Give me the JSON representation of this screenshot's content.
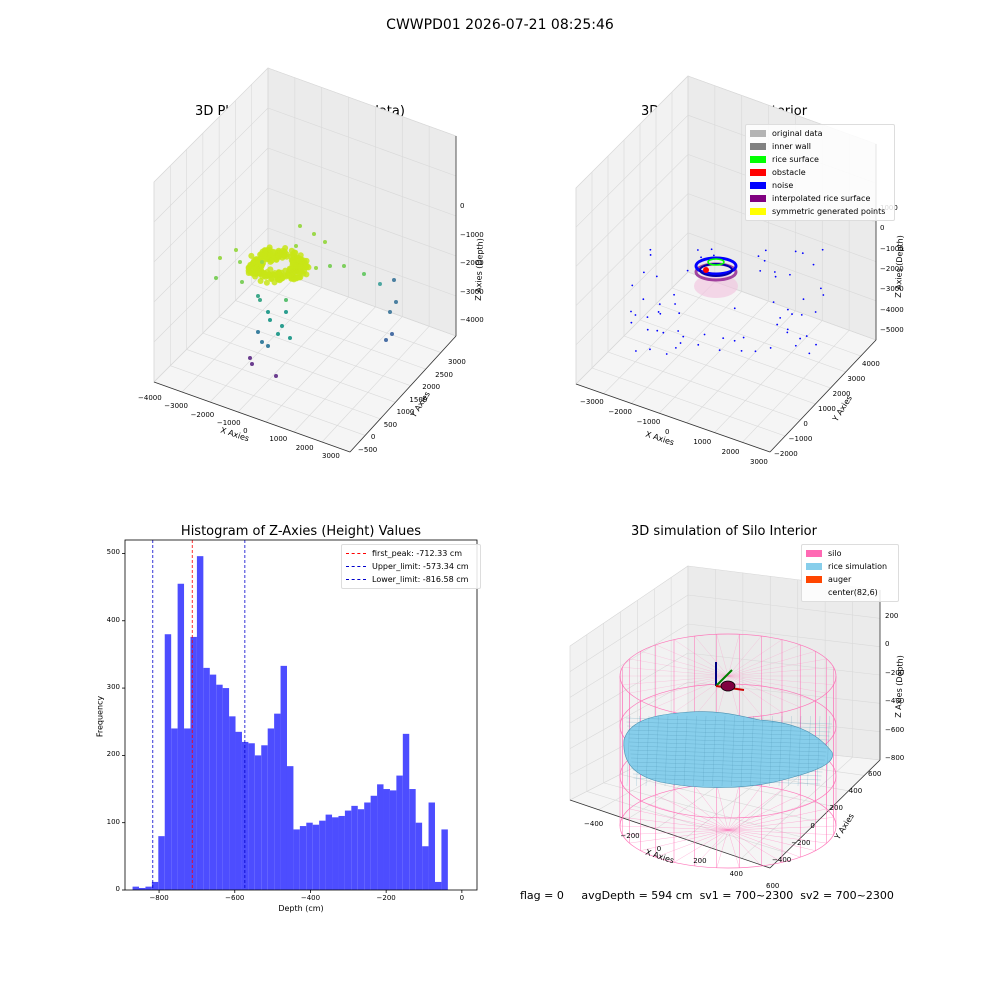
{
  "suptitle": "CWWPD01 2026-07-21 08:25:46",
  "status": {
    "flag": "flag = 0",
    "avg_depth": "avgDepth = 594 cm",
    "sv1": "sv1 = 700~2300",
    "sv2": "sv2 = 700~2300"
  },
  "chart_data": [
    {
      "type": "scatter",
      "projection": "3d",
      "title": "3D Plot of Silo Interior(row data)",
      "xlabel": "X Axies",
      "ylabel": "Y Axies",
      "zlabel": "Z Axies (Depth)",
      "x_ticks": [
        "−4000",
        "−3000",
        "−2000",
        "−1000",
        "0",
        "1000",
        "2000",
        "3000"
      ],
      "y_ticks": [
        "−500",
        "0",
        "500",
        "1000",
        "1500",
        "2000",
        "2500",
        "3000"
      ],
      "z_ticks": [
        "0",
        "−1000",
        "−2000",
        "−3000",
        "−4000"
      ],
      "colormap": "viridis",
      "colors": {
        "surface": "#c8e516",
        "mid": "#2a9d8f",
        "low": "#6b3d8f",
        "wall": "#4a6fa5"
      }
    },
    {
      "type": "scatter",
      "projection": "3d",
      "title": "3D classify of Silo Interior",
      "xlabel": "X Axies",
      "ylabel": "Y Axies",
      "zlabel": "Z Axies (Depth)",
      "x_ticks": [
        "−3000",
        "−2000",
        "−1000",
        "0",
        "1000",
        "2000",
        "3000"
      ],
      "y_ticks": [
        "−2000",
        "−1000",
        "0",
        "1000",
        "2000",
        "3000",
        "4000"
      ],
      "z_ticks": [
        "1000",
        "0",
        "−1000",
        "−2000",
        "−3000",
        "−4000",
        "−5000"
      ],
      "legend": [
        {
          "label": "original data",
          "color": "#b3b3b3"
        },
        {
          "label": "inner wall",
          "color": "#808080"
        },
        {
          "label": "rice surface",
          "color": "#00ff00"
        },
        {
          "label": "obstacle",
          "color": "#ff0000"
        },
        {
          "label": "noise",
          "color": "#0000ff"
        },
        {
          "label": "interpolated rice surface",
          "color": "#800080"
        },
        {
          "label": "symmetric generated points",
          "color": "#ffff00"
        }
      ]
    },
    {
      "type": "bar",
      "title": "Histogram of Z-Axies (Height) Values",
      "xlabel": "Depth (cm)",
      "ylabel": "Frequency",
      "xlim": [
        -890,
        40
      ],
      "ylim": [
        0,
        520
      ],
      "x_ticks": [
        -800,
        -600,
        -400,
        -200,
        0
      ],
      "x_tick_labels": [
        "−800",
        "−600",
        "−400",
        "−200",
        "0"
      ],
      "y_ticks": [
        0,
        100,
        200,
        300,
        400,
        500
      ],
      "y_tick_labels": [
        "0",
        "100",
        "200",
        "300",
        "400",
        "500"
      ],
      "bar_color": "#4d4dff",
      "bins_start": -870,
      "bin_width": 17,
      "values": [
        5,
        3,
        5,
        12,
        80,
        380,
        240,
        455,
        240,
        376,
        496,
        330,
        320,
        305,
        300,
        258,
        235,
        220,
        218,
        200,
        215,
        240,
        262,
        333,
        184,
        90,
        95,
        100,
        97,
        103,
        112,
        108,
        110,
        118,
        125,
        120,
        130,
        140,
        157,
        150,
        148,
        170,
        232,
        150,
        100,
        65,
        130,
        12,
        90
      ],
      "vlines": [
        {
          "x": -712.33,
          "label": "first_peak: -712.33 cm",
          "color": "#ff0000"
        },
        {
          "x": -573.34,
          "label": "Upper_limit: -573.34 cm",
          "color": "#0000cc"
        },
        {
          "x": -816.58,
          "label": "Lower_limit: -816.58 cm",
          "color": "#0000cc"
        }
      ]
    },
    {
      "type": "surface",
      "projection": "3d",
      "title": "3D simulation of Silo Interior",
      "xlabel": "X Axies",
      "ylabel": "Y Axies",
      "zlabel": "Z Axies (Depth)",
      "x_ticks": [
        "−400",
        "−200",
        "0",
        "200",
        "400",
        "600"
      ],
      "y_ticks": [
        "−400",
        "−200",
        "0",
        "200",
        "400",
        "600"
      ],
      "z_ticks": [
        "200",
        "0",
        "−200",
        "−400",
        "−600",
        "−800"
      ],
      "legend": [
        {
          "label": "silo",
          "color": "#ff69b4"
        },
        {
          "label": "rice simulation",
          "color": "#87ceeb"
        },
        {
          "label": "auger",
          "color": "#ff4500"
        },
        {
          "label": "center(82,6)",
          "color": ""
        }
      ]
    }
  ]
}
